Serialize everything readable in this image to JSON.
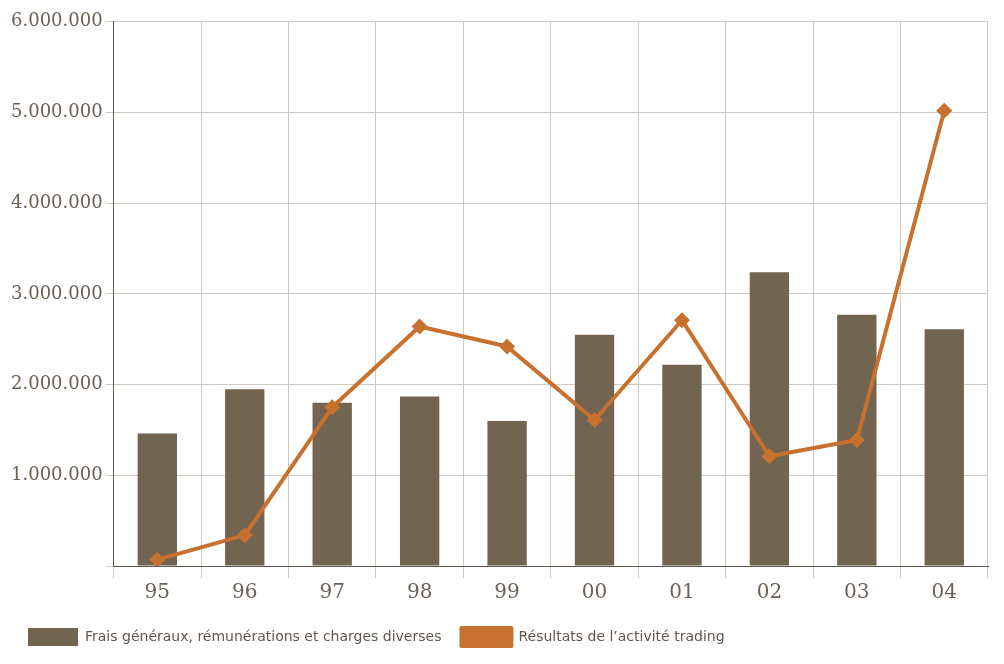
{
  "chart_data": {
    "type": "bar",
    "categories": [
      "95",
      "96",
      "97",
      "98",
      "99",
      "00",
      "01",
      "02",
      "03",
      "04"
    ],
    "series": [
      {
        "name": "Frais généraux, rémunérations et charges diverses",
        "color": "#716552",
        "values": [
          1460000,
          1950000,
          1800000,
          1870000,
          1600000,
          2550000,
          2220000,
          3240000,
          2770000,
          2610000
        ]
      },
      {
        "name": "Résultats de l’activité trading",
        "type": "line",
        "color": "#c8702e",
        "values": [
          70000,
          340000,
          1750000,
          2640000,
          2420000,
          1610000,
          2710000,
          1210000,
          1390000,
          5020000
        ]
      }
    ],
    "ylim": [
      0,
      6000000
    ],
    "yticks": [
      {
        "value": 0,
        "label": null
      },
      {
        "value": 1000000,
        "label": "1.000.000"
      },
      {
        "value": 2000000,
        "label": "2.000.000"
      },
      {
        "value": 3000000,
        "label": "3.000.000"
      },
      {
        "value": 4000000,
        "label": "4.000.000"
      },
      {
        "value": 5000000,
        "label": "5.000.000"
      },
      {
        "value": 6000000,
        "label": "6.000.000"
      }
    ],
    "grid": true,
    "legend": "bottom left",
    "marker": "diamond",
    "line_style": "solid"
  }
}
